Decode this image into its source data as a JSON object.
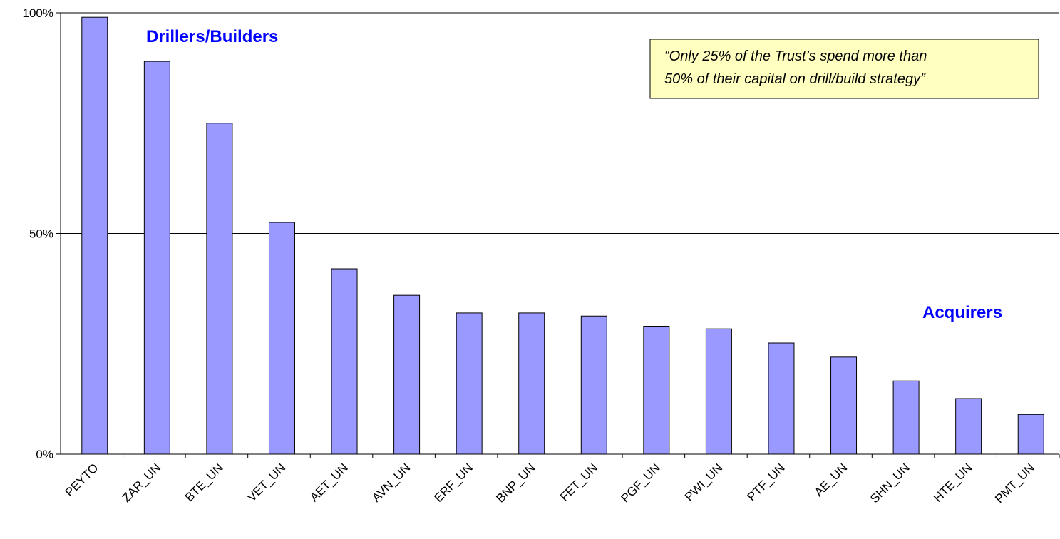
{
  "chart_data": {
    "type": "bar",
    "categories": [
      "PEYTO",
      "ZAR_UN",
      "BTE_UN",
      "VET_UN",
      "AET_UN",
      "AVN_UN",
      "ERF_UN",
      "BNP_UN",
      "FET_UN",
      "PGF_UN",
      "PWI_UN",
      "PTF_UN",
      "AE_UN",
      "SHN_UN",
      "HTE_UN",
      "PMT_UN"
    ],
    "values": [
      99,
      89,
      75,
      52.5,
      42,
      36,
      32,
      32,
      31.3,
      29,
      28.4,
      25.2,
      22,
      16.6,
      12.6,
      9
    ],
    "color": "#9999ff",
    "ylim": [
      0,
      100
    ],
    "yticks": [
      {
        "value": 0,
        "label": "0%"
      },
      {
        "value": 50,
        "label": "50%"
      },
      {
        "value": 100,
        "label": "100%"
      }
    ],
    "grid": true,
    "annotations": [
      "Drillers/Builders",
      "Acquirers"
    ],
    "note": [
      "“Only 25% of the Trust’s spend more than",
      "50% of their capital on drill/build strategy”"
    ]
  }
}
